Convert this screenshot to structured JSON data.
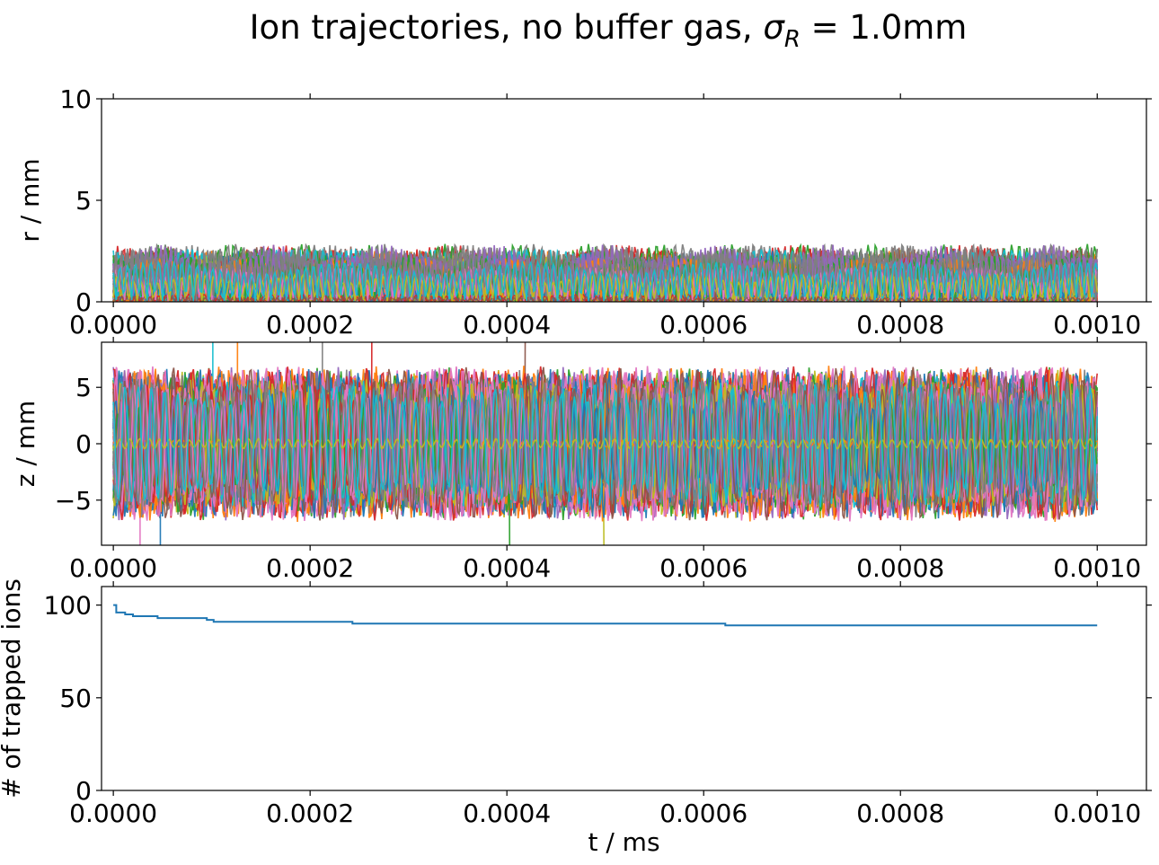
{
  "figure": {
    "title_prefix": "Ion trajectories, no buffer gas, ",
    "title_symbol": "σ",
    "title_subscript": "R",
    "title_suffix": " =  1.0mm"
  },
  "chart_data": [
    {
      "type": "line",
      "ylabel": "r / mm",
      "xlabel": "",
      "xlim": [
        -1.2e-05,
        0.00105
      ],
      "ylim": [
        0,
        10
      ],
      "x_ticks": [
        0.0,
        0.0002,
        0.0004,
        0.0006,
        0.0008,
        0.001
      ],
      "x_tick_labels": [
        "0.0000",
        "0.0002",
        "0.0004",
        "0.0006",
        "0.0008",
        "0.0010"
      ],
      "y_ticks": [
        0,
        5,
        10
      ],
      "y_tick_labels": [
        "0",
        "5",
        "10"
      ],
      "series_count": 100,
      "series_colors": [
        "#1f77b4",
        "#ff7f0e",
        "#2ca02c",
        "#d62728",
        "#9467bd",
        "#8c564b",
        "#e377c2",
        "#7f7f7f",
        "#bcbd22",
        "#17becf"
      ],
      "t_range": [
        0.0,
        0.001
      ],
      "amplitude_max": 3.1
    },
    {
      "type": "line",
      "ylabel": "z / mm",
      "xlabel": "",
      "xlim": [
        -1.2e-05,
        0.00105
      ],
      "ylim": [
        -9,
        9
      ],
      "x_ticks": [
        0.0,
        0.0002,
        0.0004,
        0.0006,
        0.0008,
        0.001
      ],
      "x_tick_labels": [
        "0.0000",
        "0.0002",
        "0.0004",
        "0.0006",
        "0.0008",
        "0.0010"
      ],
      "y_ticks": [
        -5,
        0,
        5
      ],
      "y_tick_labels": [
        "−5",
        "0",
        "5"
      ],
      "series_count": 100,
      "series_colors": [
        "#1f77b4",
        "#ff7f0e",
        "#2ca02c",
        "#d62728",
        "#9467bd",
        "#8c564b",
        "#e377c2",
        "#7f7f7f",
        "#bcbd22",
        "#17becf"
      ],
      "t_range": [
        0.0,
        0.001
      ],
      "amplitude_max": 7.0
    },
    {
      "type": "line",
      "ylabel": "# of trapped ions",
      "xlabel": "t / ms",
      "xlim": [
        -1.2e-05,
        0.00105
      ],
      "ylim": [
        0,
        110
      ],
      "x_ticks": [
        0.0,
        0.0002,
        0.0004,
        0.0006,
        0.0008,
        0.001
      ],
      "x_tick_labels": [
        "0.0000",
        "0.0002",
        "0.0004",
        "0.0006",
        "0.0008",
        "0.0010"
      ],
      "y_ticks": [
        0,
        50,
        100
      ],
      "y_tick_labels": [
        "0",
        "50",
        "100"
      ],
      "series": [
        {
          "color": "#1f77b4",
          "step": true,
          "x": [
            0.0,
            3e-06,
            1.2e-05,
            2e-05,
            4.5e-05,
            9.5e-05,
            0.000102,
            0.000243,
            0.000622,
            0.001
          ],
          "y": [
            100,
            96,
            95,
            94,
            93,
            92,
            91,
            90,
            89,
            89
          ]
        }
      ]
    }
  ]
}
